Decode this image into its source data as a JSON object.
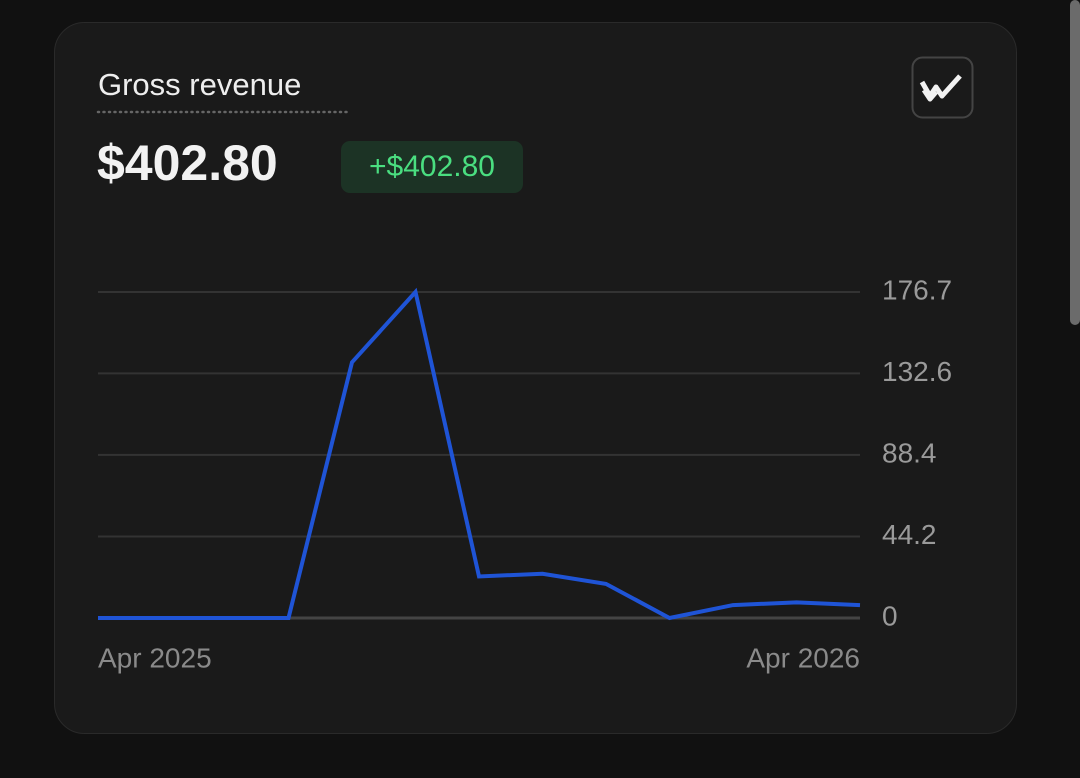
{
  "card": {
    "title": "Gross revenue",
    "amount": "$402.80",
    "change": "+$402.80"
  },
  "chart_data": {
    "type": "line",
    "categories": [
      "Apr 2025",
      null,
      null,
      null,
      null,
      null,
      null,
      null,
      null,
      null,
      null,
      null,
      "Apr 2026"
    ],
    "series": [
      {
        "color": "#1f54d6",
        "values": [
          0,
          0,
          0,
          0,
          138.6,
          176.7,
          22.5,
          24,
          18.5,
          0,
          7,
          8.5,
          7
        ]
      }
    ],
    "ylim": [
      0,
      176.7
    ],
    "yticks": [
      0,
      44.2,
      88.4,
      132.6,
      176.7
    ],
    "grid": true
  }
}
